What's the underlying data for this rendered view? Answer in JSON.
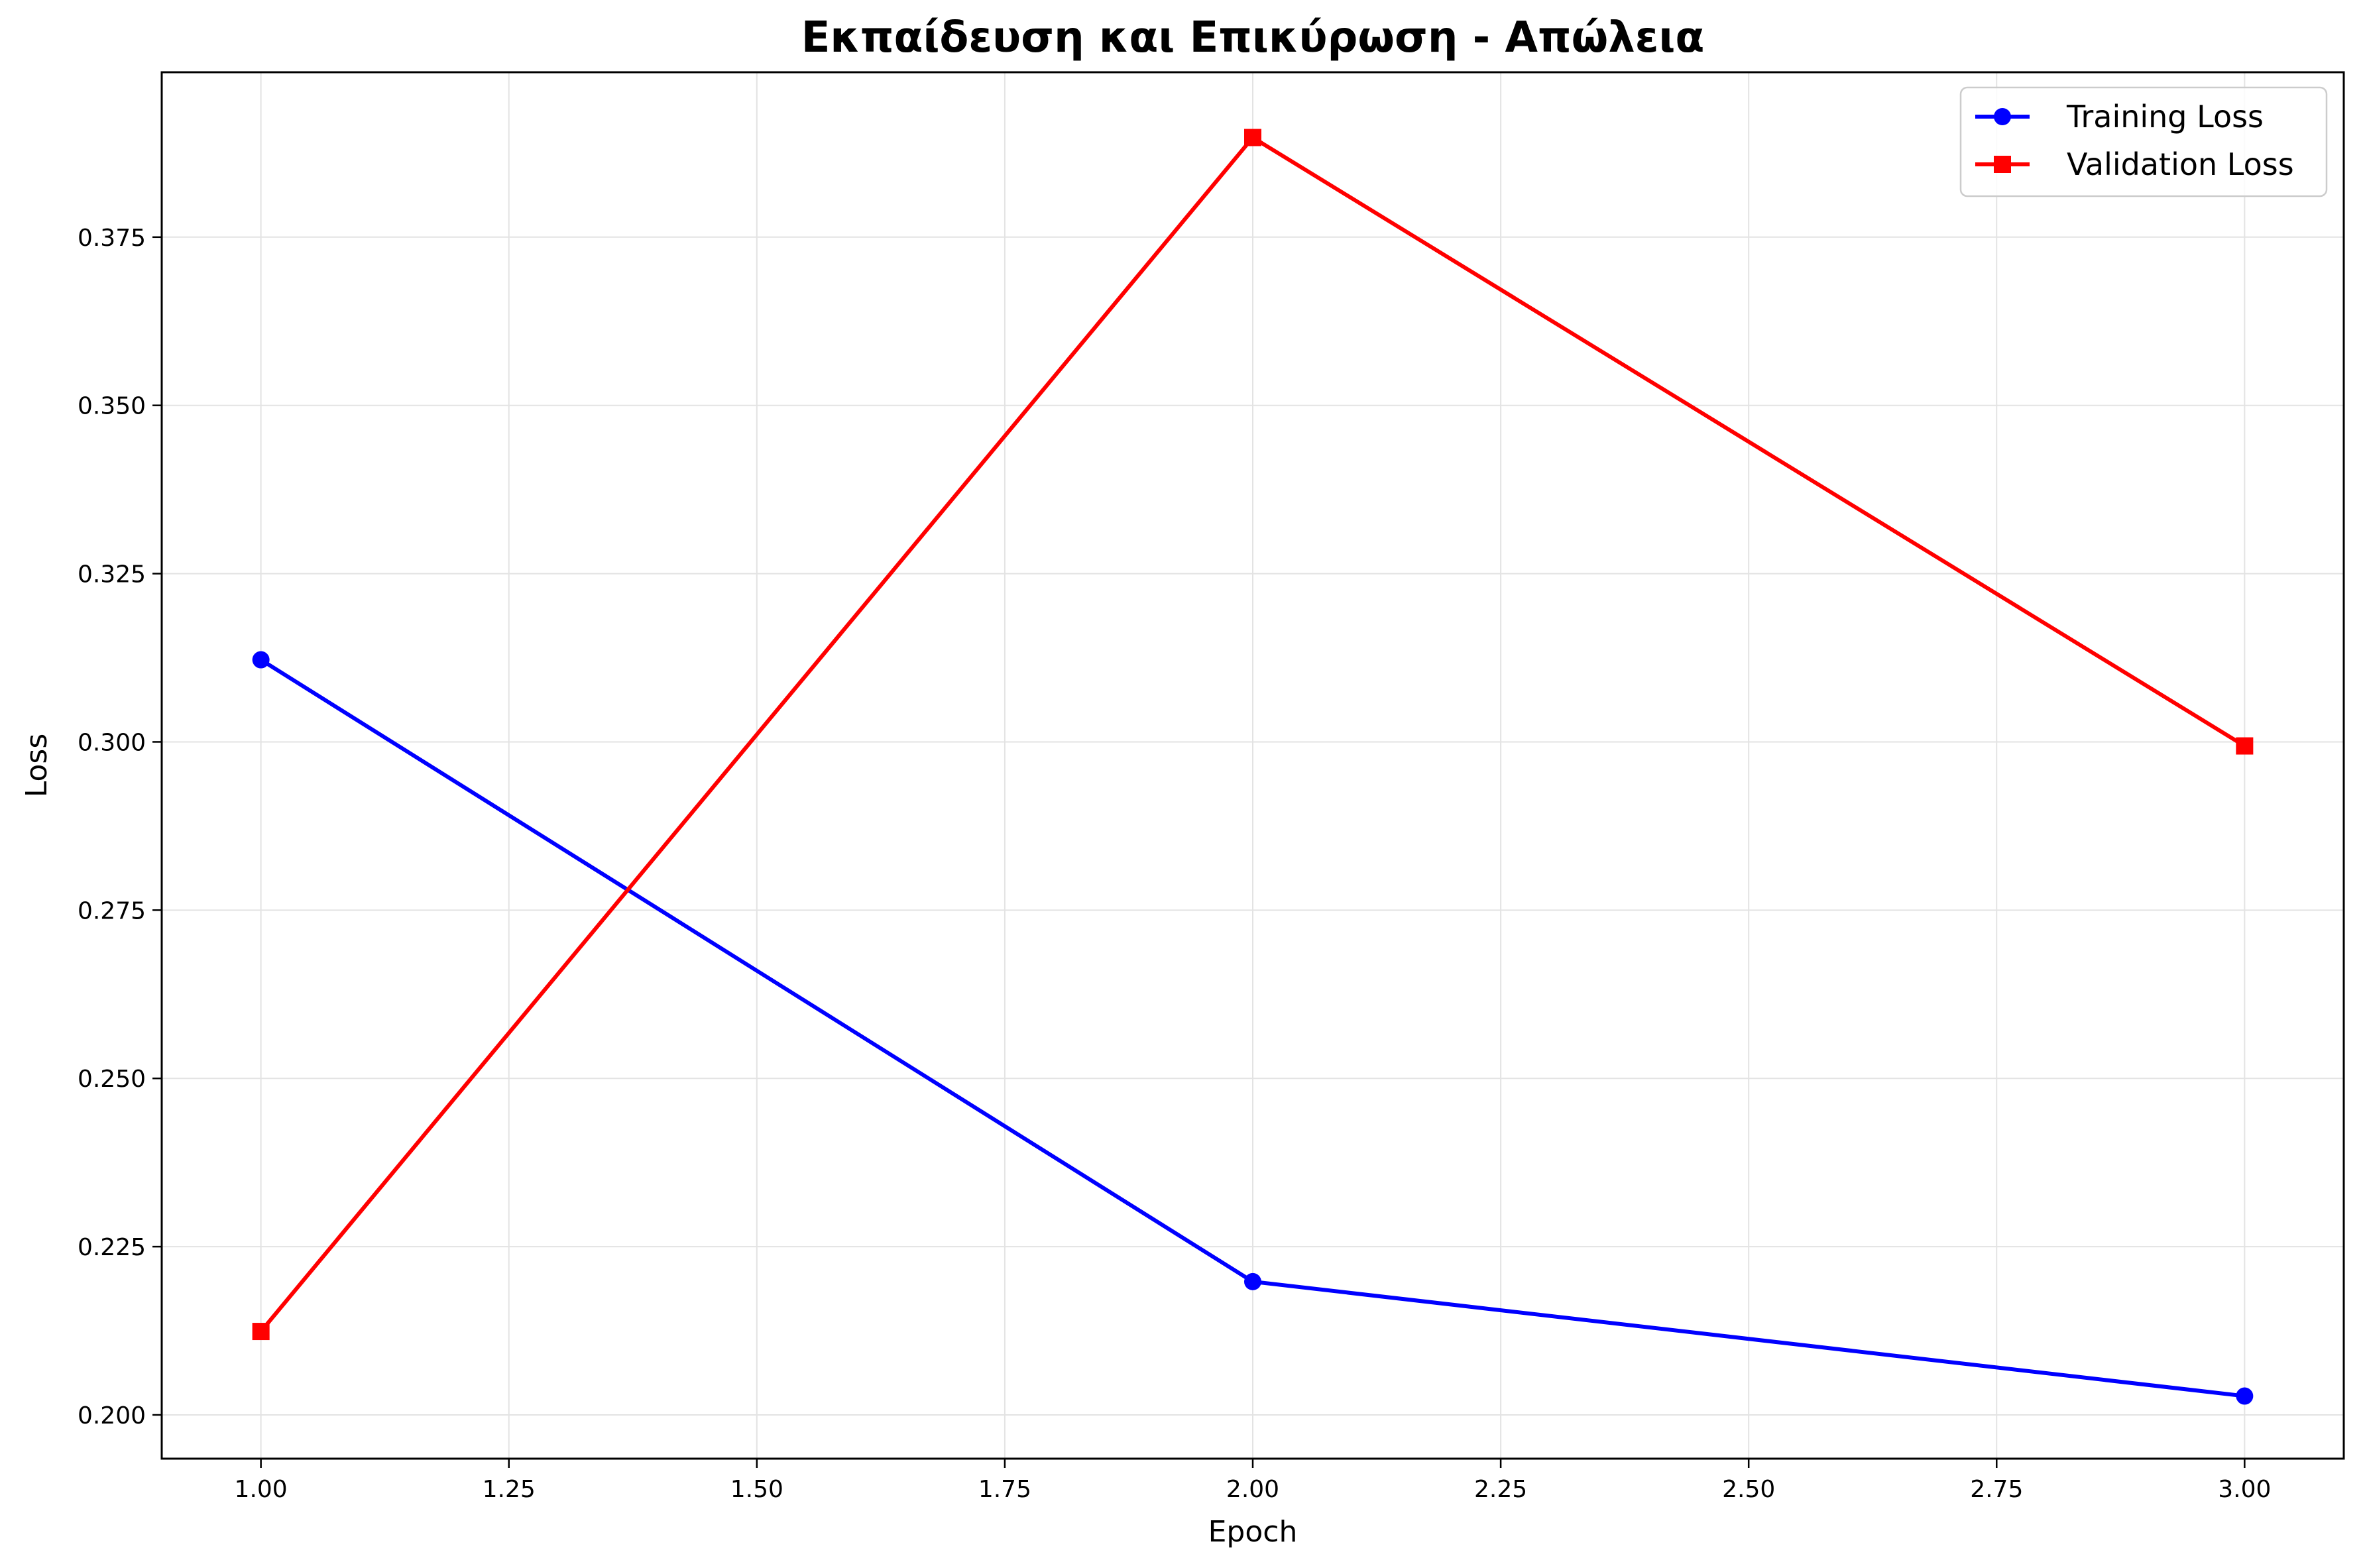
{
  "chart_data": {
    "type": "line",
    "title": "Εκπαίδευση και Επικύρωση - Απώλεια",
    "xlabel": "Epoch",
    "ylabel": "Loss",
    "xlim": [
      0.9,
      3.1
    ],
    "ylim": [
      0.1935,
      0.3995
    ],
    "x_ticks": [
      1.0,
      1.25,
      1.5,
      1.75,
      2.0,
      2.25,
      2.5,
      2.75,
      3.0
    ],
    "x_tick_labels": [
      "1.00",
      "1.25",
      "1.50",
      "1.75",
      "2.00",
      "2.25",
      "2.50",
      "2.75",
      "3.00"
    ],
    "y_ticks": [
      0.2,
      0.225,
      0.25,
      0.275,
      0.3,
      0.325,
      0.35,
      0.375
    ],
    "y_tick_labels": [
      "0.200",
      "0.225",
      "0.250",
      "0.275",
      "0.300",
      "0.325",
      "0.350",
      "0.375"
    ],
    "grid": true,
    "legend_position": "top-right",
    "series": [
      {
        "name": "Training Loss",
        "color": "#0000ff",
        "marker": "circle",
        "x": [
          1,
          2,
          3
        ],
        "y": [
          0.3122,
          0.2198,
          0.2028
        ]
      },
      {
        "name": "Validation Loss",
        "color": "#ff0000",
        "marker": "square",
        "x": [
          1,
          2,
          3
        ],
        "y": [
          0.2124,
          0.3898,
          0.2994
        ]
      }
    ]
  }
}
